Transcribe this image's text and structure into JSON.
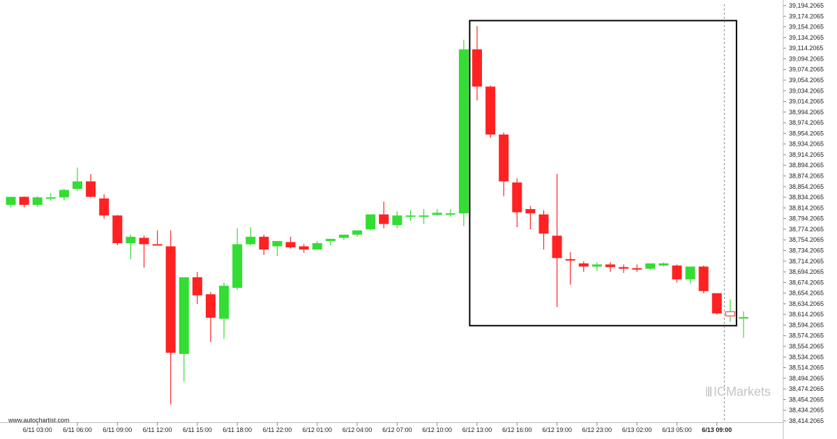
{
  "site_label": "www.autochartist.com",
  "brand": {
    "prefix": "IC",
    "name": "Markets"
  },
  "colors": {
    "up": "#33dd33",
    "down": "#ff2222",
    "wick_up": "#33dd33",
    "wick_down": "#ff2222",
    "pattern_box": "#000000",
    "grid": "#dddddd",
    "vline": "#888888"
  },
  "chart_data": {
    "type": "candlestick",
    "ylim": [
      38414.2065,
      39194.2065
    ],
    "yticks": [
      39194.2065,
      39174.2065,
      39154.2065,
      39134.2065,
      39114.2065,
      39094.2065,
      39074.2065,
      39054.2065,
      39034.2065,
      39014.2065,
      38994.2065,
      38974.2065,
      38954.2065,
      38934.2065,
      38914.2065,
      38894.2065,
      38874.2065,
      38854.2065,
      38834.2065,
      38814.2065,
      38794.2065,
      38774.2065,
      38754.2065,
      38734.2065,
      38714.2065,
      38694.2065,
      38674.2065,
      38654.2065,
      38634.2065,
      38614.2065,
      38594.2065,
      38574.2065,
      38554.2065,
      38534.2065,
      38514.2065,
      38494.2065,
      38474.2065,
      38454.2065,
      38434.2065,
      38414.2065
    ],
    "ytick_labels": [
      "39,194.2065",
      "39,174.2065",
      "39,154.2065",
      "39,134.2065",
      "39,114.2065",
      "39,094.2065",
      "39,074.2065",
      "39,054.2065",
      "39,034.2065",
      "39,014.2065",
      "38,994.2065",
      "38,974.2065",
      "38,954.2065",
      "38,934.2065",
      "38,914.2065",
      "38,894.2065",
      "38,874.2065",
      "38,854.2065",
      "38,834.2065",
      "38,814.2065",
      "38,794.2065",
      "38,774.2065",
      "38,754.2065",
      "38,734.2065",
      "38,714.2065",
      "38,694.2065",
      "38,674.2065",
      "38,654.2065",
      "38,634.2065",
      "38,614.2065",
      "38,594.2065",
      "38,574.2065",
      "38,554.2065",
      "38,534.2065",
      "38,514.2065",
      "38,494.2065",
      "38,474.2065",
      "38,454.2065",
      "38,434.2065",
      "38,414.2065"
    ],
    "xticks": [
      {
        "label": "6/11 03:00",
        "index": 2
      },
      {
        "label": "6/11 06:00",
        "index": 5
      },
      {
        "label": "6/11 09:00",
        "index": 8
      },
      {
        "label": "6/11 12:00",
        "index": 11
      },
      {
        "label": "6/11 15:00",
        "index": 14
      },
      {
        "label": "6/11 18:00",
        "index": 17
      },
      {
        "label": "6/11 22:00",
        "index": 20
      },
      {
        "label": "6/12 01:00",
        "index": 23
      },
      {
        "label": "6/12 04:00",
        "index": 26
      },
      {
        "label": "6/12 07:00",
        "index": 29
      },
      {
        "label": "6/12 10:00",
        "index": 32
      },
      {
        "label": "6/12 13:00",
        "index": 35
      },
      {
        "label": "6/12 16:00",
        "index": 38
      },
      {
        "label": "6/12 19:00",
        "index": 41
      },
      {
        "label": "6/12 23:00",
        "index": 44
      },
      {
        "label": "6/13 02:00",
        "index": 47
      },
      {
        "label": "6/13 05:00",
        "index": 50
      },
      {
        "label": "6/13 09:00",
        "index": 53,
        "bold": true
      }
    ],
    "candles": [
      {
        "o": 38820,
        "h": 38835,
        "l": 38815,
        "c": 38835
      },
      {
        "o": 38835,
        "h": 38836,
        "l": 38815,
        "c": 38820
      },
      {
        "o": 38820,
        "h": 38836,
        "l": 38816,
        "c": 38834
      },
      {
        "o": 38834,
        "h": 38842,
        "l": 38828,
        "c": 38834
      },
      {
        "o": 38834,
        "h": 38850,
        "l": 38828,
        "c": 38848
      },
      {
        "o": 38850,
        "h": 38890,
        "l": 38846,
        "c": 38864
      },
      {
        "o": 38864,
        "h": 38878,
        "l": 38834,
        "c": 38835
      },
      {
        "o": 38832,
        "h": 38840,
        "l": 38794,
        "c": 38800
      },
      {
        "o": 38800,
        "h": 38801,
        "l": 38744,
        "c": 38748
      },
      {
        "o": 38748,
        "h": 38764,
        "l": 38718,
        "c": 38760
      },
      {
        "o": 38758,
        "h": 38762,
        "l": 38702,
        "c": 38746
      },
      {
        "o": 38746,
        "h": 38772,
        "l": 38744,
        "c": 38744
      },
      {
        "o": 38742,
        "h": 38772,
        "l": 38445,
        "c": 38542
      },
      {
        "o": 38540,
        "h": 38684,
        "l": 38488,
        "c": 38684
      },
      {
        "o": 38684,
        "h": 38694,
        "l": 38634,
        "c": 38650
      },
      {
        "o": 38652,
        "h": 38656,
        "l": 38562,
        "c": 38608
      },
      {
        "o": 38606,
        "h": 38674,
        "l": 38568,
        "c": 38668
      },
      {
        "o": 38664,
        "h": 38776,
        "l": 38660,
        "c": 38746
      },
      {
        "o": 38746,
        "h": 38778,
        "l": 38744,
        "c": 38760
      },
      {
        "o": 38760,
        "h": 38764,
        "l": 38726,
        "c": 38736
      },
      {
        "o": 38742,
        "h": 38752,
        "l": 38724,
        "c": 38752
      },
      {
        "o": 38750,
        "h": 38760,
        "l": 38738,
        "c": 38740
      },
      {
        "o": 38742,
        "h": 38746,
        "l": 38730,
        "c": 38736
      },
      {
        "o": 38736,
        "h": 38752,
        "l": 38736,
        "c": 38748
      },
      {
        "o": 38752,
        "h": 38756,
        "l": 38744,
        "c": 38756
      },
      {
        "o": 38758,
        "h": 38764,
        "l": 38754,
        "c": 38764
      },
      {
        "o": 38764,
        "h": 38772,
        "l": 38760,
        "c": 38772
      },
      {
        "o": 38774,
        "h": 38802,
        "l": 38772,
        "c": 38802
      },
      {
        "o": 38802,
        "h": 38826,
        "l": 38776,
        "c": 38784
      },
      {
        "o": 38782,
        "h": 38808,
        "l": 38776,
        "c": 38800
      },
      {
        "o": 38800,
        "h": 38810,
        "l": 38790,
        "c": 38800
      },
      {
        "o": 38798,
        "h": 38812,
        "l": 38784,
        "c": 38800
      },
      {
        "o": 38801,
        "h": 38812,
        "l": 38800,
        "c": 38805
      },
      {
        "o": 38804,
        "h": 38812,
        "l": 38798,
        "c": 38804
      },
      {
        "o": 38804,
        "h": 39130,
        "l": 38780,
        "c": 39112
      },
      {
        "o": 39112,
        "h": 39156,
        "l": 39016,
        "c": 39042
      },
      {
        "o": 39042,
        "h": 39044,
        "l": 38946,
        "c": 38952
      },
      {
        "o": 38952,
        "h": 38956,
        "l": 38836,
        "c": 38864
      },
      {
        "o": 38862,
        "h": 38870,
        "l": 38778,
        "c": 38806
      },
      {
        "o": 38812,
        "h": 38818,
        "l": 38774,
        "c": 38804
      },
      {
        "o": 38802,
        "h": 38810,
        "l": 38736,
        "c": 38766
      },
      {
        "o": 38762,
        "h": 38878,
        "l": 38628,
        "c": 38720
      },
      {
        "o": 38718,
        "h": 38731,
        "l": 38670,
        "c": 38716
      },
      {
        "o": 38710,
        "h": 38714,
        "l": 38694,
        "c": 38704
      },
      {
        "o": 38704,
        "h": 38712,
        "l": 38696,
        "c": 38708
      },
      {
        "o": 38708,
        "h": 38712,
        "l": 38694,
        "c": 38703
      },
      {
        "o": 38703,
        "h": 38708,
        "l": 38692,
        "c": 38700
      },
      {
        "o": 38701,
        "h": 38708,
        "l": 38694,
        "c": 38700
      },
      {
        "o": 38700,
        "h": 38710,
        "l": 38698,
        "c": 38710
      },
      {
        "o": 38706,
        "h": 38712,
        "l": 38704,
        "c": 38710
      },
      {
        "o": 38706,
        "h": 38708,
        "l": 38674,
        "c": 38680
      },
      {
        "o": 38680,
        "h": 38704,
        "l": 38672,
        "c": 38704
      },
      {
        "o": 38704,
        "h": 38706,
        "l": 38654,
        "c": 38658
      },
      {
        "o": 38654,
        "h": 38654,
        "l": 38614,
        "c": 38616
      },
      {
        "o": 38612,
        "h": 38642,
        "l": 38600,
        "c": 38618
      },
      {
        "o": 38607,
        "h": 38620,
        "l": 38570,
        "c": 38609
      }
    ],
    "pattern_box": {
      "start_index": 34,
      "end_index": 54,
      "high": 39166,
      "low": 38593
    },
    "current_index": 54
  }
}
